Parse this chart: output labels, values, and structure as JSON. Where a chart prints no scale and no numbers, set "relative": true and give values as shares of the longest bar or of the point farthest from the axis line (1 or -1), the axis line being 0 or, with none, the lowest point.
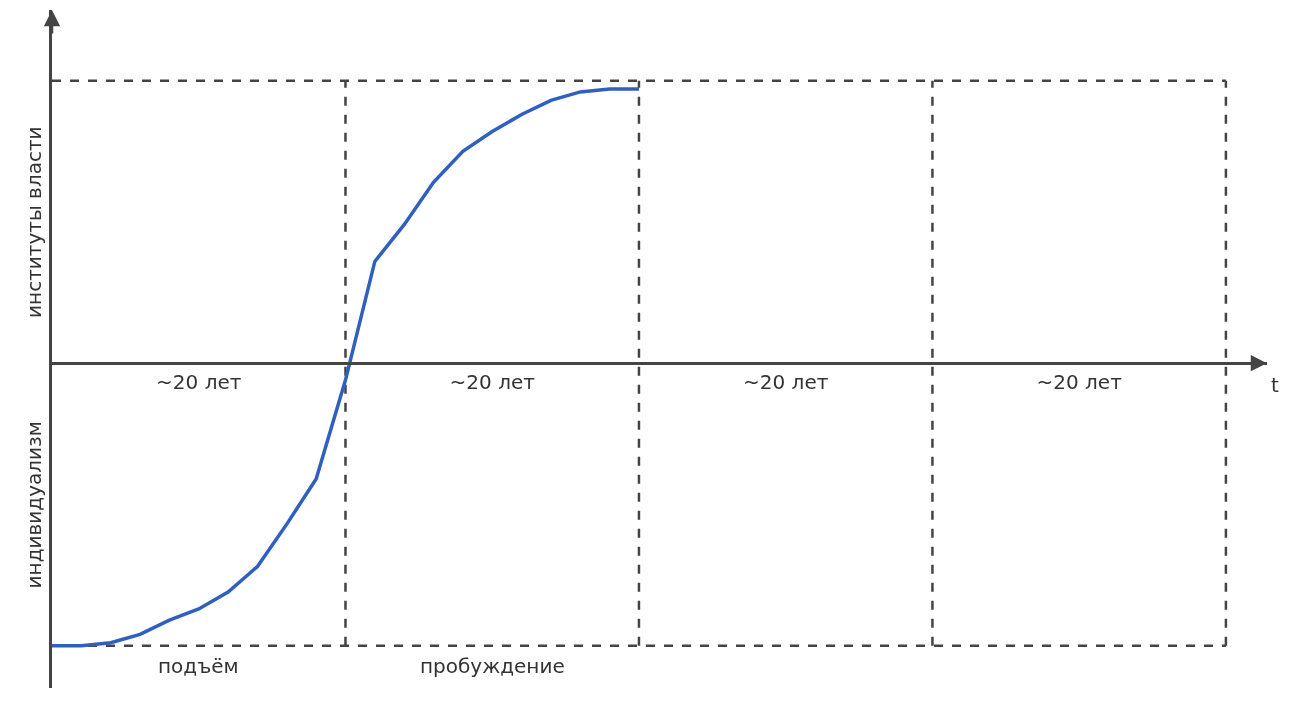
{
  "chart_data": {
    "type": "line",
    "relative": true,
    "xlabel": "t",
    "ylabel": "институты власти",
    "categories": [
      null,
      null,
      null,
      null,
      null,
      "~20 лет",
      null,
      null,
      null,
      null,
      null,
      null,
      null,
      null,
      null,
      "~20 лет",
      null,
      null,
      null,
      null,
      null,
      null,
      null,
      null,
      null,
      "~20 лет",
      null,
      null,
      null,
      null,
      null,
      null,
      null,
      null,
      null,
      "~20 лет",
      null,
      null,
      null,
      null,
      null
    ],
    "series": [
      {
        "color": "#2f5fbf",
        "values": [
          -1,
          -1,
          -0.99,
          -0.96,
          -0.91,
          -0.87,
          -0.81,
          -0.72,
          -0.57,
          -0.41,
          -0.06,
          0.36,
          0.49,
          0.64,
          0.75,
          0.82,
          0.88,
          0.93,
          0.96,
          0.97,
          0.97,
          null,
          null,
          null,
          null,
          null,
          null,
          null,
          null,
          null,
          null,
          null,
          null,
          null,
          null,
          null,
          null,
          null,
          null,
          null,
          null
        ]
      }
    ],
    "grid": "x",
    "ref_lines": [
      {
        "axis": "y",
        "value": 1,
        "color": "#444444",
        "line_style": "dashed"
      }
    ],
    "annotations": [
      "индивидуализм",
      "подъём",
      "пробуждение"
    ]
  }
}
